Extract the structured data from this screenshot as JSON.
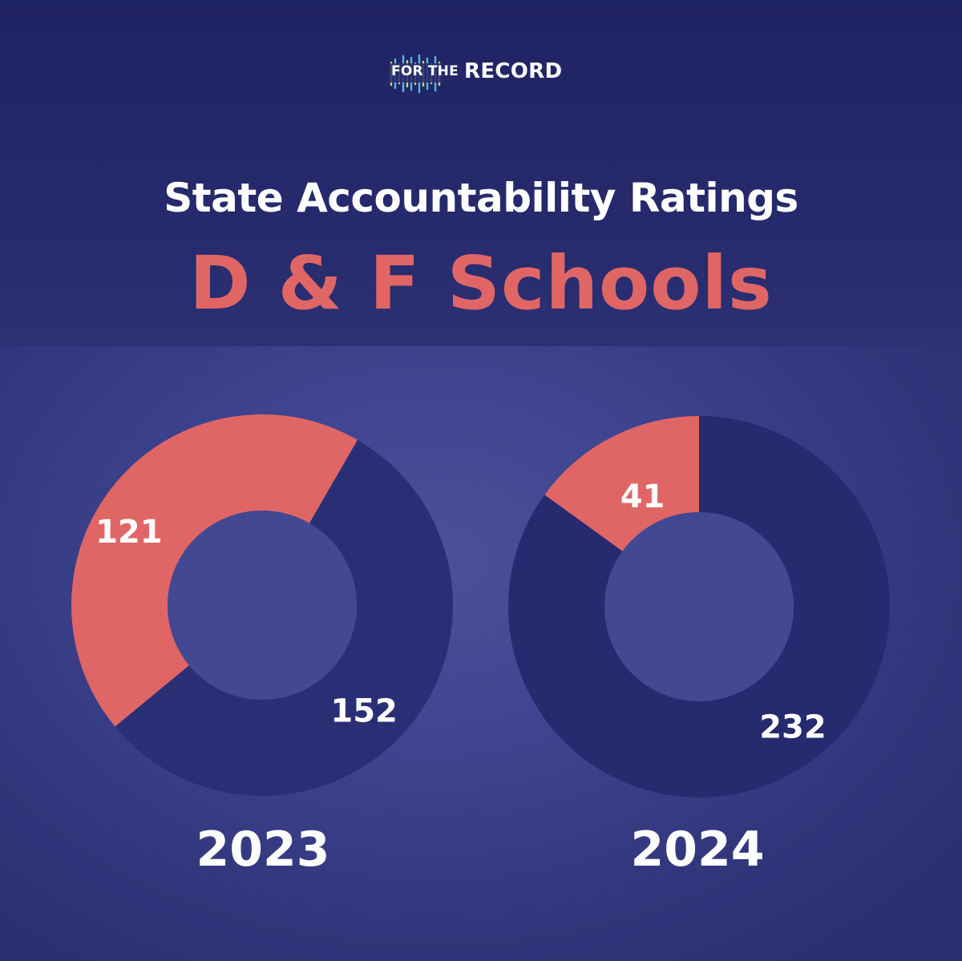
{
  "logo": {
    "prefix": "FOR THE",
    "brand": "RECORD"
  },
  "title": "State Accountability Ratings",
  "subtitle": "D & F Schools",
  "colors": {
    "highlight": "#e06666",
    "dark_segment": "#2a2f75",
    "background": "#2c2f74",
    "text": "#ffffff"
  },
  "chart_data": [
    {
      "type": "pie",
      "variant": "donut",
      "label": "2023",
      "slices": [
        {
          "value": 121,
          "color": "#e06666"
        },
        {
          "value": 152,
          "color": "#2a2f75"
        }
      ]
    },
    {
      "type": "pie",
      "variant": "donut",
      "label": "2024",
      "slices": [
        {
          "value": 41,
          "color": "#e06666"
        },
        {
          "value": 232,
          "color": "#262a6e"
        }
      ]
    }
  ]
}
